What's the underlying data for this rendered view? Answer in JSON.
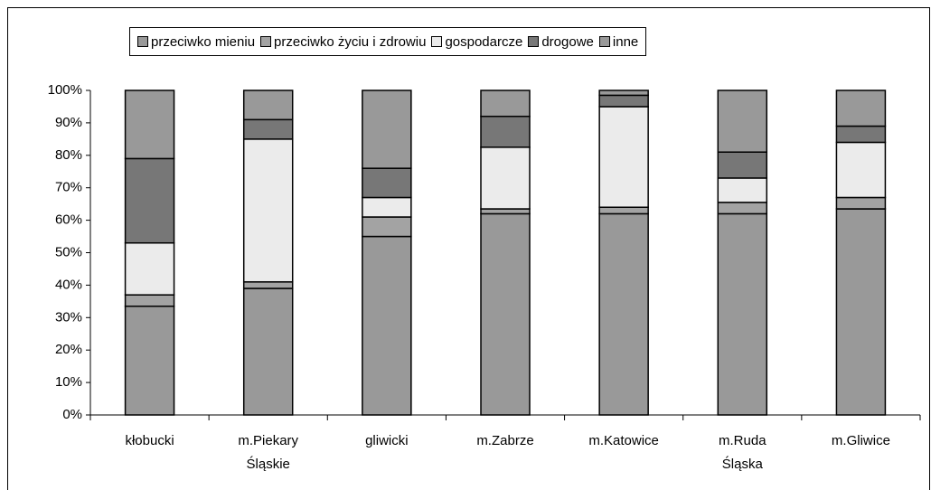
{
  "chart_data": {
    "type": "stacked_bar",
    "categories": [
      "kłobucki",
      "m.Piekary Śląskie",
      "gliwicki",
      "m.Zabrze",
      "m.Katowice",
      "m.Ruda Śląska",
      "m.Gliwice"
    ],
    "series": [
      {
        "name": "przeciwko mieniu",
        "color": "#999999",
        "values": [
          33.5,
          39,
          55,
          62,
          62,
          62,
          63.5
        ]
      },
      {
        "name": "przeciwko życiu i zdrowiu",
        "color": "#a3a3a3",
        "values": [
          3.5,
          2,
          6,
          1.5,
          2,
          3.5,
          3.5
        ]
      },
      {
        "name": "gospodarcze",
        "color": "#ebebeb",
        "values": [
          16,
          44,
          6,
          19,
          31,
          7.5,
          17
        ]
      },
      {
        "name": "drogowe",
        "color": "#777777",
        "values": [
          26,
          6,
          9,
          9.5,
          3.5,
          8,
          5
        ]
      },
      {
        "name": "inne",
        "color": "#999999",
        "values": [
          21,
          9,
          24,
          8,
          1.5,
          19,
          11
        ]
      }
    ],
    "ylim": [
      0,
      100
    ],
    "yticks": [
      {
        "value": 0,
        "label": "0%"
      },
      {
        "value": 10,
        "label": "10%"
      },
      {
        "value": 20,
        "label": "20%"
      },
      {
        "value": 30,
        "label": "30%"
      },
      {
        "value": 40,
        "label": "40%"
      },
      {
        "value": 50,
        "label": "50%"
      },
      {
        "value": 60,
        "label": "60%"
      },
      {
        "value": 70,
        "label": "70%"
      },
      {
        "value": 80,
        "label": "80%"
      },
      {
        "value": 90,
        "label": "90%"
      },
      {
        "value": 100,
        "label": "100%"
      }
    ],
    "legend": "top"
  }
}
